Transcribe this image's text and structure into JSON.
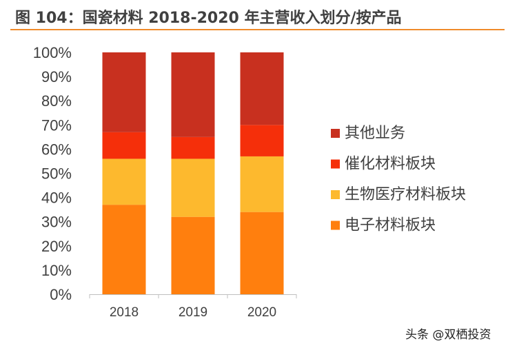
{
  "title": "图 104：国瓷材料 2018-2020 年主营收入划分/按产品",
  "footer": "头条 @双栖投资",
  "chart_data": {
    "type": "bar",
    "stacked": true,
    "categories": [
      "2018",
      "2019",
      "2020"
    ],
    "series": [
      {
        "name": "电子材料板块",
        "color": "#ff7f0e",
        "values": [
          37,
          32,
          34
        ]
      },
      {
        "name": "生物医疗材料板块",
        "color": "#fdb92e",
        "values": [
          19,
          24,
          23
        ]
      },
      {
        "name": "催化材料板块",
        "color": "#f52f0a",
        "values": [
          11,
          9,
          13
        ]
      },
      {
        "name": "其他业务",
        "color": "#c8301f",
        "values": [
          33,
          35,
          30
        ]
      }
    ],
    "legend_order": [
      "其他业务",
      "催化材料板块",
      "生物医疗材料板块",
      "电子材料板块"
    ],
    "ylim": [
      0,
      100
    ],
    "yticks": [
      "0%",
      "10%",
      "20%",
      "30%",
      "40%",
      "50%",
      "60%",
      "70%",
      "80%",
      "90%",
      "100%"
    ],
    "grid": false,
    "legend_position": "right"
  }
}
